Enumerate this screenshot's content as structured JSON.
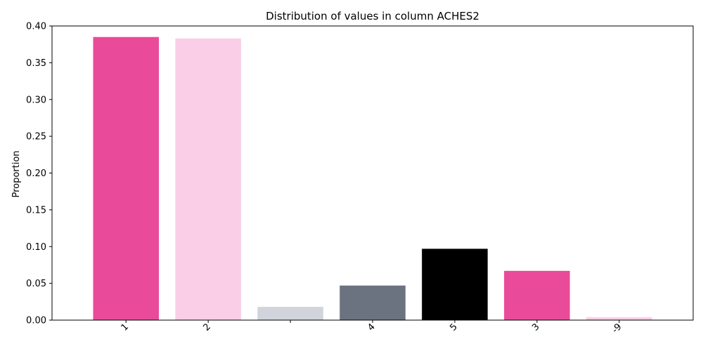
{
  "chart_data": {
    "type": "bar",
    "title": "Distribution of values in column ACHES2",
    "xlabel": "",
    "ylabel": "Proportion",
    "categories": [
      "1",
      "2",
      "",
      "4",
      "5",
      "3",
      "-9"
    ],
    "values": [
      0.385,
      0.383,
      0.018,
      0.047,
      0.097,
      0.067,
      0.004
    ],
    "colors": [
      "#ea4a9a",
      "#f9cee6",
      "#d1d5db",
      "#6b7280",
      "#000000",
      "#ea4a9a",
      "#f9cee6"
    ],
    "ylim": [
      0,
      0.4
    ],
    "yticks": [
      "0.00",
      "0.05",
      "0.10",
      "0.15",
      "0.20",
      "0.25",
      "0.30",
      "0.35",
      "0.40"
    ],
    "grid": false,
    "legend": "none"
  }
}
